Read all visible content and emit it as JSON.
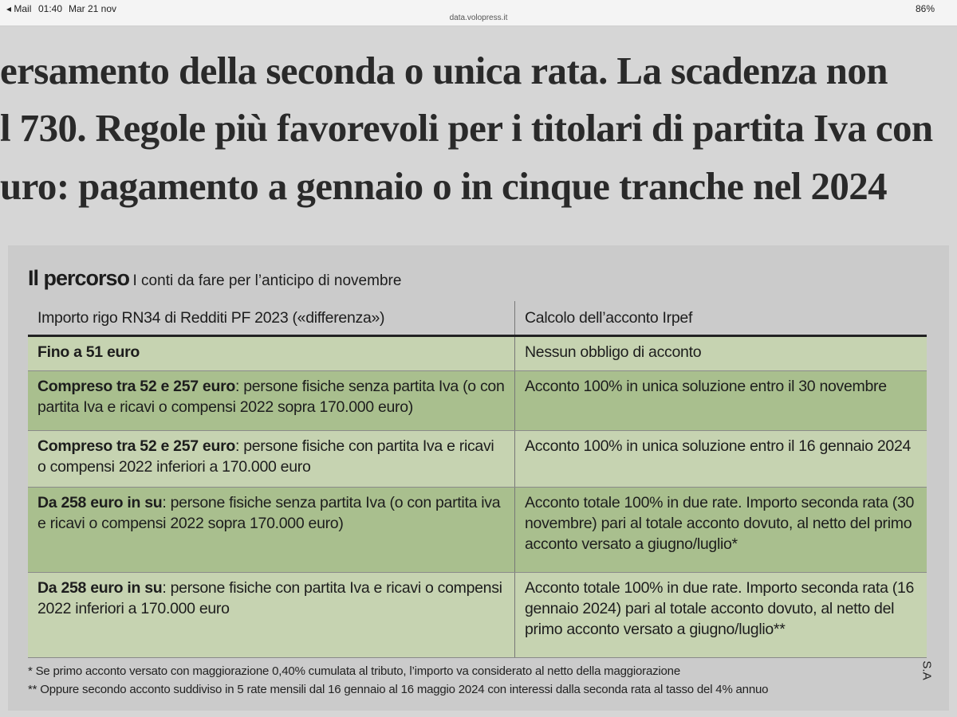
{
  "status_bar": {
    "back_app": "Mail",
    "time": "01:40",
    "date": "Mar 21 nov",
    "url": "data.volopress.it",
    "battery": "86%"
  },
  "headline": {
    "lines": [
      "ersamento della seconda o unica rata. La scadenza non",
      "l 730. Regole più favorevoli per i titolari di partita Iva con",
      "uro: pagamento a gennaio o in cinque tranche nel 2024"
    ]
  },
  "box": {
    "title": "Il percorso",
    "subtitle": "I conti da fare per l’anticipo di novembre",
    "table": {
      "headers": [
        "Importo rigo RN34 di Redditi PF 2023 («differenza»)",
        "Calcolo dell’acconto Irpef"
      ],
      "rows": [
        {
          "bold": "Fino a 51 euro",
          "text": "",
          "result": "Nessun obbligo di acconto"
        },
        {
          "bold": "Compreso tra 52 e 257 euro",
          "text": ": persone fisiche senza partita Iva (o con partita Iva e ricavi o compensi 2022 sopra 170.000 euro)",
          "result": "Acconto 100% in unica soluzione entro il 30 novembre"
        },
        {
          "bold": "Compreso tra 52 e 257 euro",
          "text": ": persone fisiche con partita Iva e ricavi o compensi 2022 inferiori a 170.000 euro",
          "result": "Acconto 100% in unica soluzione entro il 16 gennaio 2024"
        },
        {
          "bold": "Da 258 euro in su",
          "text": ": persone fisiche senza partita Iva (o con partita iva e ricavi o compensi 2022 sopra 170.000 euro)",
          "result": "Acconto totale 100% in due rate. Importo seconda rata (30 novembre) pari al totale acconto dovuto, al netto del primo acconto versato a giugno/luglio*"
        },
        {
          "bold": "Da 258 euro in su",
          "text": ": persone fisiche con partita Iva e ricavi o compensi 2022 inferiori a 170.000 euro",
          "result": "Acconto totale 100% in due rate. Importo seconda rata (16 gennaio 2024) pari al totale acconto dovuto, al netto del primo acconto versato a giugno/luglio**"
        }
      ]
    },
    "footnotes": [
      "* Se primo acconto versato con maggiorazione 0,40% cumulata al tributo, l’importo va considerato al netto della maggiorazione",
      "** Oppure secondo acconto suddiviso in 5 rate mensili dal 16 gennaio al 16 maggio 2024 con interessi dalla seconda rata al tasso del 4% annuo"
    ],
    "signature": "S.A"
  }
}
